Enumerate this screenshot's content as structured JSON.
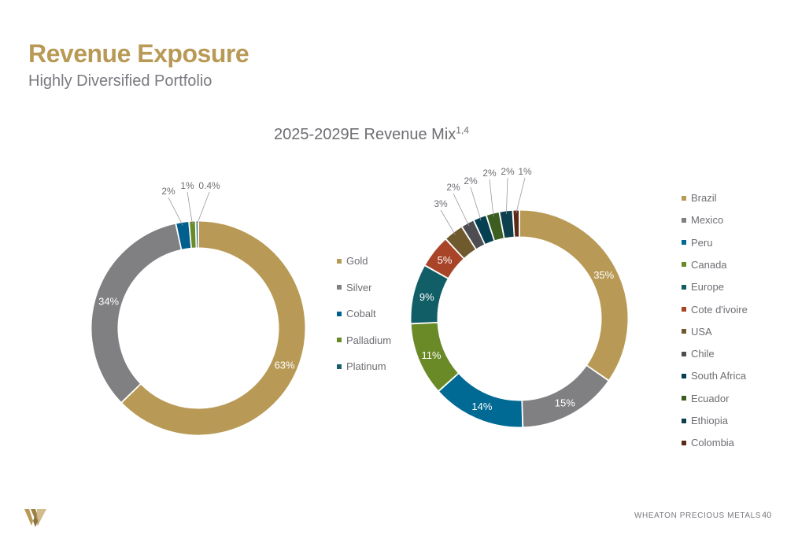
{
  "header": {
    "title": "Revenue Exposure",
    "subtitle": "Highly Diversified Portfolio"
  },
  "chart_heading": {
    "text": "2025-2029E Revenue Mix",
    "superscript": "1,4"
  },
  "chart_data": [
    {
      "type": "pie",
      "variant": "donut",
      "title": "",
      "legend_position": "right",
      "categories": [
        "Gold",
        "Silver",
        "Cobalt",
        "Palladium",
        "Platinum"
      ],
      "values": [
        63,
        34,
        2,
        1,
        0.4
      ],
      "labels": [
        "63%",
        "34%",
        "2%",
        "1%",
        "0.4%"
      ],
      "colors": [
        "#b89a56",
        "#808083",
        "#005f8c",
        "#6a8a28",
        "#1b5e6b"
      ]
    },
    {
      "type": "pie",
      "variant": "donut",
      "title": "",
      "legend_position": "right",
      "categories": [
        "Brazil",
        "Mexico",
        "Peru",
        "Canada",
        "Europe",
        "Cote d'ivoire",
        "USA",
        "Chile",
        "South Africa",
        "Ecuador",
        "Ethiopia",
        "Colombia"
      ],
      "values": [
        35,
        15,
        14,
        11,
        9,
        5,
        3,
        2,
        2,
        2,
        2,
        1
      ],
      "labels": [
        "35%",
        "15%",
        "14%",
        "11%",
        "9%",
        "5%",
        "3%",
        "2%",
        "2%",
        "2%",
        "2%",
        "1%"
      ],
      "colors": [
        "#b89a56",
        "#808083",
        "#006a94",
        "#6a8a28",
        "#115e66",
        "#a84428",
        "#6e5a2c",
        "#4d4d52",
        "#053f52",
        "#3c5e20",
        "#0e3f4e",
        "#5c2a16"
      ]
    }
  ],
  "footer": {
    "brand": "WHEATON  PRECIOUS METALS",
    "page_number": "40"
  },
  "icons": {
    "logo": "wheaton-w-logo-icon"
  }
}
